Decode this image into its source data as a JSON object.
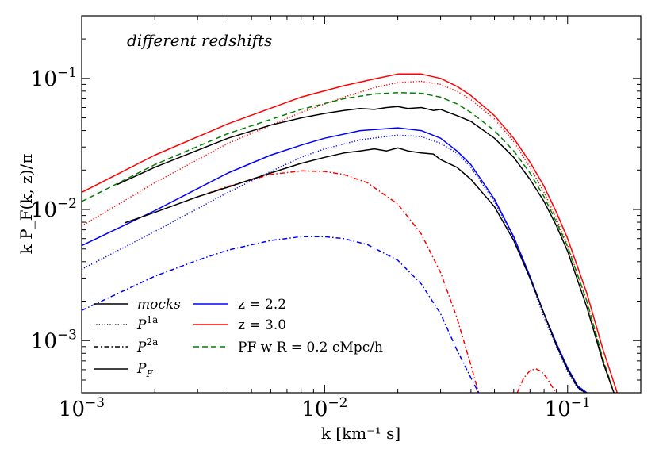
{
  "chart_data": {
    "type": "line",
    "annotation": "different redshifts",
    "xlabel": "k [km⁻¹ s]",
    "ylabel": "k P_F(k, z)/π",
    "xscale": "log",
    "yscale": "log",
    "xlim": [
      0.001,
      0.2
    ],
    "ylim": [
      0.0004,
      0.3
    ],
    "xticks": [
      {
        "value": 0.001,
        "base": "10",
        "exp": "−3"
      },
      {
        "value": 0.01,
        "base": "10",
        "exp": "−2"
      },
      {
        "value": 0.1,
        "base": "10",
        "exp": "−1"
      }
    ],
    "yticks": [
      {
        "value": 0.001,
        "base": "10",
        "exp": "−3"
      },
      {
        "value": 0.01,
        "base": "10",
        "exp": "−2"
      },
      {
        "value": 0.1,
        "base": "10",
        "exp": "−1"
      }
    ],
    "colors": {
      "blue": "#0000ff",
      "red": "#ff0000",
      "green": "#007f00",
      "black": "#000000"
    },
    "legend": {
      "position": "lower-left",
      "styles": [
        {
          "label": "mocks",
          "dash": "solid"
        },
        {
          "label": "P1a",
          "dash": "dotted"
        },
        {
          "label": "P2a",
          "dash": "dashdot"
        },
        {
          "label": "PF",
          "dash": "solid"
        }
      ],
      "colors": [
        {
          "label": "z = 2.2",
          "color": "#0000ff",
          "dash": "solid"
        },
        {
          "label": "z = 3.0",
          "color": "#ff0000",
          "dash": "solid"
        },
        {
          "label": "PF w R = 0.2 cMpc/h",
          "color": "#007f00",
          "dash": "dashed"
        }
      ]
    },
    "series": [
      {
        "name": "PF z=3.0",
        "color": "#ff0000",
        "dash": "solid",
        "x": [
          0.001,
          0.002,
          0.004,
          0.008,
          0.012,
          0.016,
          0.02,
          0.025,
          0.03,
          0.035,
          0.04,
          0.05,
          0.06,
          0.07,
          0.08,
          0.09,
          0.1,
          0.12,
          0.14,
          0.16
        ],
        "y": [
          0.0135,
          0.026,
          0.045,
          0.072,
          0.088,
          0.099,
          0.108,
          0.108,
          0.1,
          0.087,
          0.074,
          0.052,
          0.035,
          0.023,
          0.015,
          0.0095,
          0.006,
          0.0023,
          0.00085,
          0.0004
        ]
      },
      {
        "name": "P1a z=3.0",
        "color": "#ff0000",
        "dash": "dotted",
        "x": [
          0.001,
          0.002,
          0.004,
          0.008,
          0.012,
          0.016,
          0.02,
          0.025,
          0.03,
          0.035,
          0.04,
          0.05,
          0.06,
          0.07,
          0.08,
          0.09,
          0.1,
          0.12,
          0.14,
          0.155
        ],
        "y": [
          0.0075,
          0.016,
          0.032,
          0.055,
          0.072,
          0.085,
          0.093,
          0.095,
          0.09,
          0.08,
          0.069,
          0.049,
          0.033,
          0.021,
          0.0135,
          0.0085,
          0.0053,
          0.002,
          0.0007,
          0.0004
        ]
      },
      {
        "name": "P2a z=3.0",
        "color": "#ff0000",
        "dash": "dashdot",
        "x": [
          0.003,
          0.004,
          0.006,
          0.008,
          0.01,
          0.012,
          0.015,
          0.02,
          0.025,
          0.03,
          0.035,
          0.04,
          0.043
        ],
        "y": [
          0.0125,
          0.015,
          0.0185,
          0.0197,
          0.0195,
          0.0185,
          0.016,
          0.011,
          0.0065,
          0.0033,
          0.0015,
          0.00065,
          0.0004
        ]
      },
      {
        "name": "P2a z=3.0 bump",
        "color": "#ff0000",
        "dash": "dashdot",
        "x": [
          0.062,
          0.066,
          0.07,
          0.074,
          0.078,
          0.082,
          0.086,
          0.09
        ],
        "y": [
          0.0004,
          0.00052,
          0.00059,
          0.00061,
          0.00058,
          0.00052,
          0.00045,
          0.0004
        ]
      },
      {
        "name": "PF R=0.2",
        "color": "#007f00",
        "dash": "dashed",
        "x": [
          0.001,
          0.002,
          0.004,
          0.008,
          0.012,
          0.016,
          0.02,
          0.025,
          0.03,
          0.035,
          0.04,
          0.05,
          0.06,
          0.07,
          0.08,
          0.09,
          0.1,
          0.12,
          0.14,
          0.155
        ],
        "y": [
          0.0115,
          0.022,
          0.038,
          0.058,
          0.07,
          0.076,
          0.078,
          0.077,
          0.072,
          0.064,
          0.055,
          0.04,
          0.028,
          0.019,
          0.0125,
          0.008,
          0.0052,
          0.002,
          0.00072,
          0.0004
        ]
      },
      {
        "name": "mocks z=3.0",
        "color": "#000000",
        "dash": "solid",
        "x": [
          0.0014,
          0.002,
          0.004,
          0.006,
          0.008,
          0.01,
          0.012,
          0.014,
          0.016,
          0.018,
          0.02,
          0.022,
          0.025,
          0.028,
          0.03,
          0.035,
          0.04,
          0.05,
          0.06,
          0.07,
          0.08,
          0.09,
          0.1,
          0.12,
          0.14,
          0.155
        ],
        "y": [
          0.0155,
          0.021,
          0.035,
          0.044,
          0.05,
          0.054,
          0.057,
          0.059,
          0.058,
          0.06,
          0.061,
          0.059,
          0.06,
          0.057,
          0.058,
          0.052,
          0.047,
          0.035,
          0.025,
          0.017,
          0.0115,
          0.0075,
          0.0048,
          0.0018,
          0.00068,
          0.0004
        ]
      },
      {
        "name": "PF z=2.2",
        "color": "#0000ff",
        "dash": "solid",
        "x": [
          0.001,
          0.002,
          0.004,
          0.006,
          0.008,
          0.01,
          0.014,
          0.02,
          0.025,
          0.03,
          0.035,
          0.04,
          0.05,
          0.06,
          0.07,
          0.08,
          0.09,
          0.1,
          0.11,
          0.12
        ],
        "y": [
          0.0053,
          0.0098,
          0.019,
          0.026,
          0.031,
          0.035,
          0.04,
          0.042,
          0.04,
          0.035,
          0.028,
          0.022,
          0.012,
          0.0062,
          0.0031,
          0.0016,
          0.00095,
          0.00062,
          0.00045,
          0.0004
        ]
      },
      {
        "name": "P1a z=2.2",
        "color": "#0000ff",
        "dash": "dotted",
        "x": [
          0.001,
          0.002,
          0.004,
          0.006,
          0.008,
          0.01,
          0.014,
          0.02,
          0.025,
          0.03,
          0.035,
          0.04,
          0.05,
          0.06,
          0.07,
          0.08,
          0.09,
          0.1,
          0.11,
          0.118
        ],
        "y": [
          0.0035,
          0.0068,
          0.0135,
          0.0195,
          0.025,
          0.029,
          0.034,
          0.037,
          0.036,
          0.032,
          0.027,
          0.021,
          0.0115,
          0.006,
          0.003,
          0.0015,
          0.0009,
          0.00058,
          0.00043,
          0.0004
        ]
      },
      {
        "name": "P2a z=2.2",
        "color": "#0000ff",
        "dash": "dashdot",
        "x": [
          0.001,
          0.002,
          0.003,
          0.004,
          0.006,
          0.008,
          0.01,
          0.012,
          0.015,
          0.02,
          0.025,
          0.03,
          0.035,
          0.04,
          0.043
        ],
        "y": [
          0.0017,
          0.0031,
          0.0041,
          0.0049,
          0.0058,
          0.0062,
          0.0062,
          0.006,
          0.0054,
          0.0041,
          0.0027,
          0.0016,
          0.00085,
          0.00052,
          0.0004
        ]
      },
      {
        "name": "mocks z=2.2",
        "color": "#000000",
        "dash": "solid",
        "x": [
          0.0015,
          0.002,
          0.003,
          0.004,
          0.006,
          0.008,
          0.01,
          0.012,
          0.014,
          0.016,
          0.018,
          0.02,
          0.022,
          0.025,
          0.028,
          0.03,
          0.035,
          0.04,
          0.05,
          0.06,
          0.07,
          0.08,
          0.09,
          0.1,
          0.11,
          0.118
        ],
        "y": [
          0.0079,
          0.0095,
          0.0125,
          0.0148,
          0.019,
          0.0225,
          0.025,
          0.027,
          0.028,
          0.029,
          0.028,
          0.0295,
          0.028,
          0.027,
          0.0265,
          0.024,
          0.021,
          0.017,
          0.0105,
          0.0058,
          0.003,
          0.0016,
          0.00092,
          0.0006,
          0.00044,
          0.0004
        ]
      }
    ]
  }
}
